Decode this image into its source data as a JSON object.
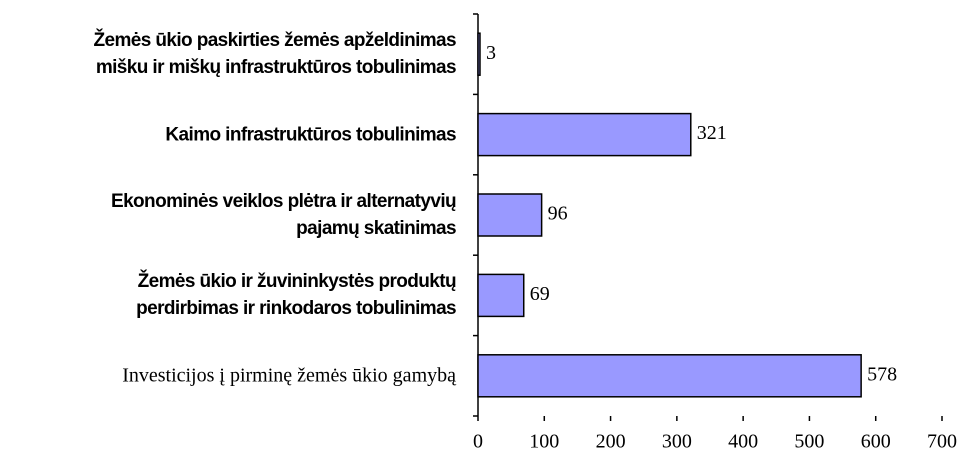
{
  "chart_data": {
    "type": "bar",
    "orientation": "horizontal",
    "categories": [
      "Žemės ūkio paskirties žemės apželdinimas\nmišku ir miškų infrastruktūros tobulinimas",
      "Kaimo infrastruktūros tobulinimas",
      "Ekonominės veiklos plėtra ir alternatyvių\npajamų skatinimas",
      "Žemės ūkio ir žuvininkystės produktų\nperdirbimas ir rinkodaros tobulinimas",
      "Investicijos į pirminę žemės ūkio gamybą"
    ],
    "values": [
      3,
      321,
      96,
      69,
      578
    ],
    "color": "#9999ff",
    "xlim": [
      0,
      700
    ],
    "xticks": [
      0,
      100,
      200,
      300,
      400,
      500,
      600,
      700
    ]
  }
}
